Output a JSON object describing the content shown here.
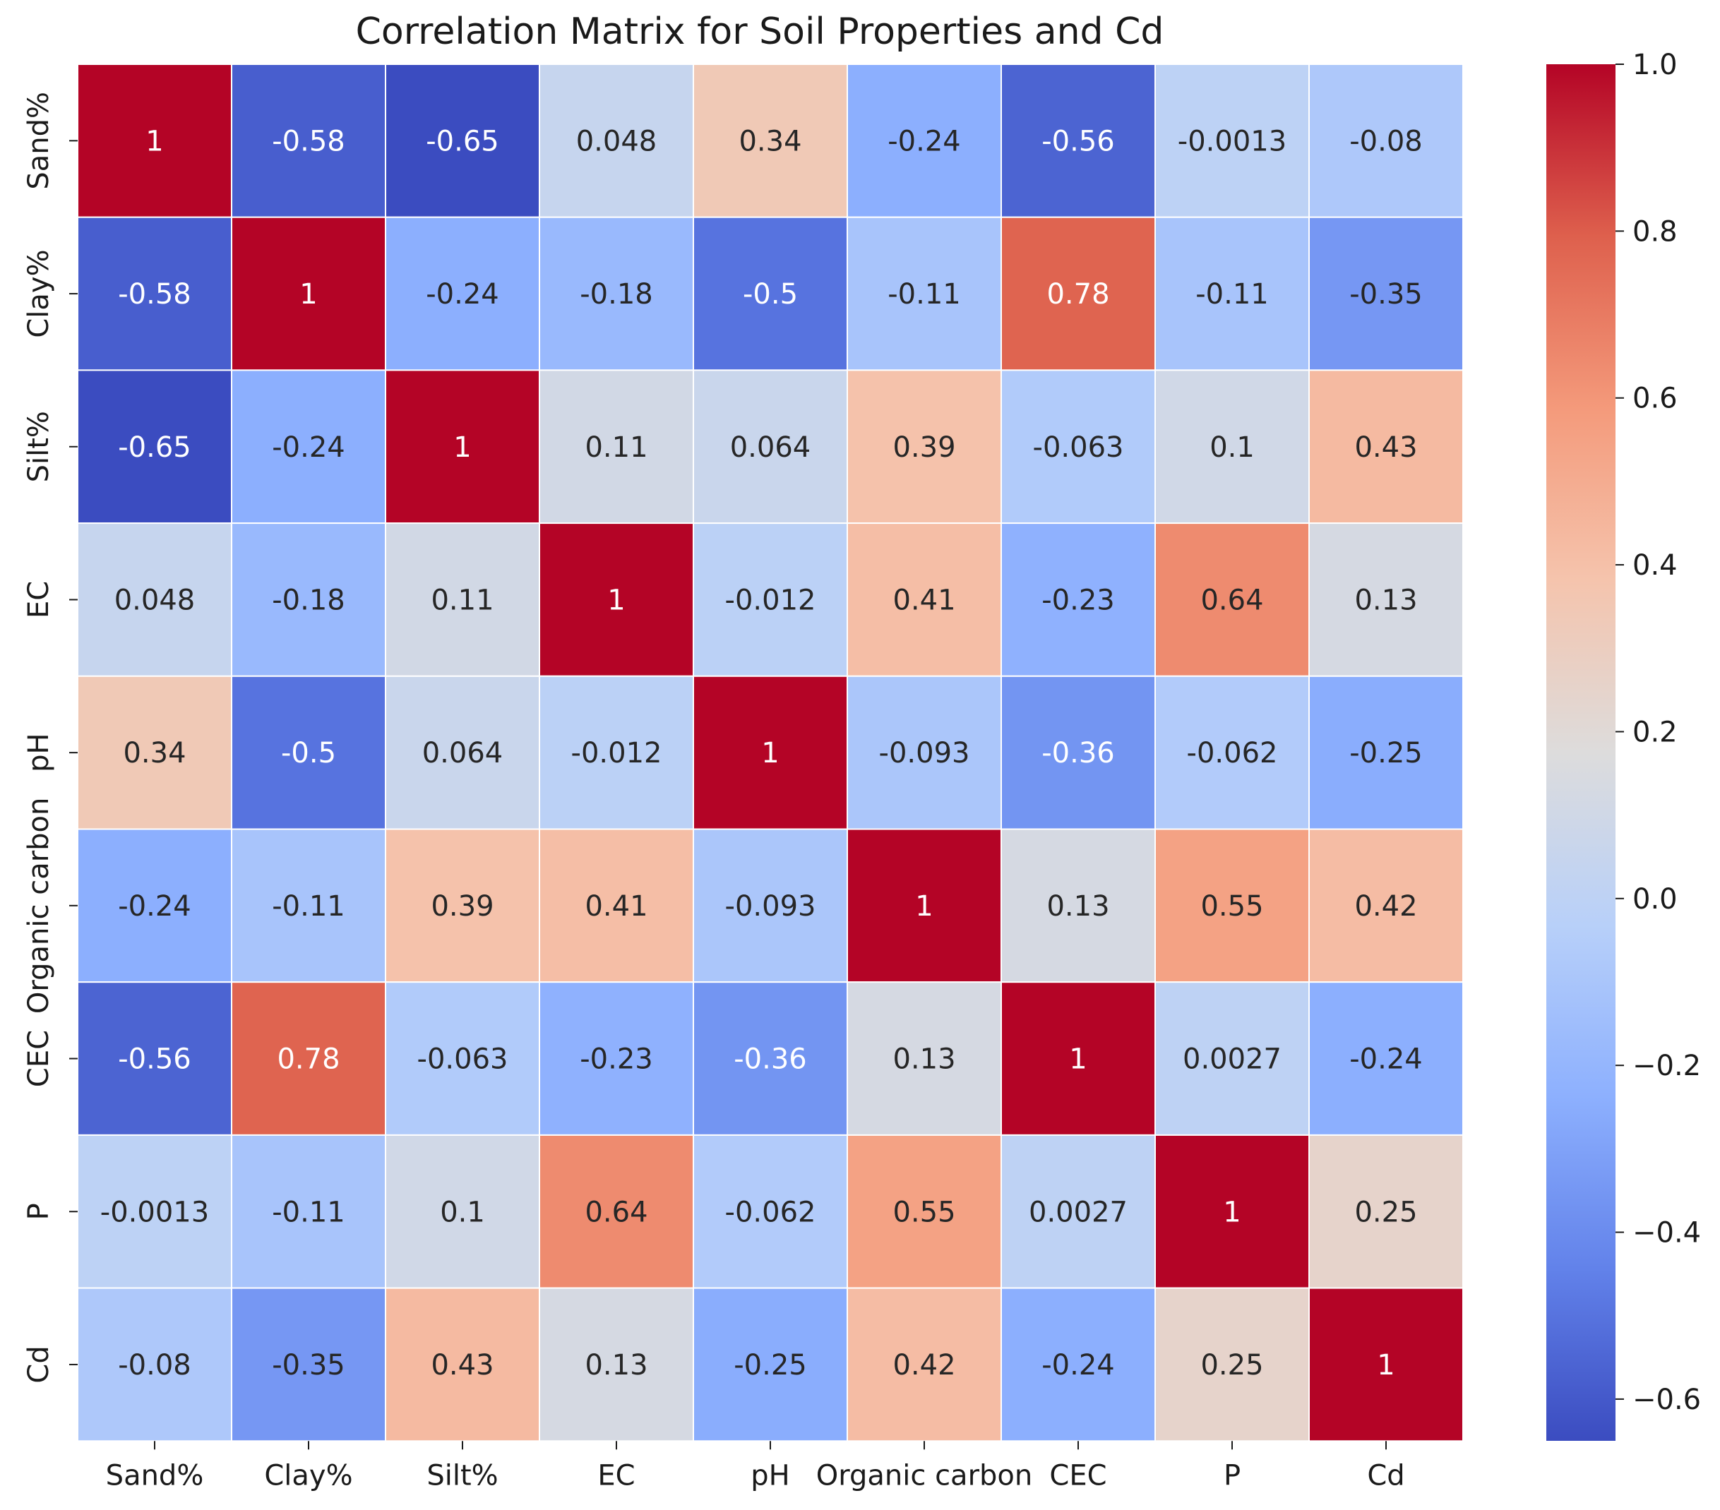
{
  "chart_data": {
    "type": "heatmap",
    "title": "Correlation Matrix for Soil Properties and Cd",
    "xlabel": "",
    "ylabel": "",
    "labels": [
      "Sand%",
      "Clay%",
      "Silt%",
      "EC",
      "pH",
      "Organic carbon",
      "CEC",
      "P",
      "Cd"
    ],
    "cell_labels": [
      [
        "1",
        "-0.58",
        "-0.65",
        "0.048",
        "0.34",
        "-0.24",
        "-0.56",
        "-0.0013",
        "-0.08"
      ],
      [
        "-0.58",
        "1",
        "-0.24",
        "-0.18",
        "-0.5",
        "-0.11",
        "0.78",
        "-0.11",
        "-0.35"
      ],
      [
        "-0.65",
        "-0.24",
        "1",
        "0.11",
        "0.064",
        "0.39",
        "-0.063",
        "0.1",
        "0.43"
      ],
      [
        "0.048",
        "-0.18",
        "0.11",
        "1",
        "-0.012",
        "0.41",
        "-0.23",
        "0.64",
        "0.13"
      ],
      [
        "0.34",
        "-0.5",
        "0.064",
        "-0.012",
        "1",
        "-0.093",
        "-0.36",
        "-0.062",
        "-0.25"
      ],
      [
        "-0.24",
        "-0.11",
        "0.39",
        "0.41",
        "-0.093",
        "1",
        "0.13",
        "0.55",
        "0.42"
      ],
      [
        "-0.56",
        "0.78",
        "-0.063",
        "-0.23",
        "-0.36",
        "0.13",
        "1",
        "0.0027",
        "-0.24"
      ],
      [
        "-0.0013",
        "-0.11",
        "0.1",
        "0.64",
        "-0.062",
        "0.55",
        "0.0027",
        "1",
        "0.25"
      ],
      [
        "-0.08",
        "-0.35",
        "0.43",
        "0.13",
        "-0.25",
        "0.42",
        "-0.24",
        "0.25",
        "1"
      ]
    ],
    "colorbar": {
      "colormap": "coolwarm",
      "vmin": -0.65,
      "vmax": 1.0,
      "ticks": [
        1.0,
        0.8,
        0.6,
        0.4,
        0.2,
        0.0,
        -0.2,
        -0.4,
        -0.6
      ],
      "tick_labels": [
        "1.0",
        "0.8",
        "0.6",
        "0.4",
        "0.2",
        "0.0",
        "−0.2",
        "−0.4",
        "−0.6"
      ]
    }
  }
}
